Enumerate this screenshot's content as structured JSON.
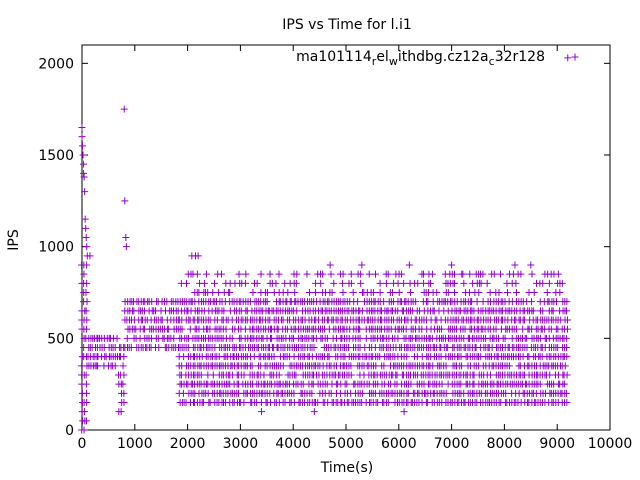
{
  "chart_data": {
    "type": "scatter",
    "title": "IPS vs Time for l.i1",
    "xlabel": "Time(s)",
    "ylabel": "IPS",
    "xlim": [
      0,
      10000
    ],
    "ylim": [
      0,
      2100
    ],
    "xticks": [
      0,
      1000,
      2000,
      3000,
      4000,
      5000,
      6000,
      7000,
      8000,
      9000,
      10000
    ],
    "yticks": [
      0,
      500,
      1000,
      1500,
      2000
    ],
    "grid": false,
    "legend_position": "top-right",
    "series": [
      {
        "name_parts": [
          "ma101114",
          "r",
          "el",
          "w",
          "ithdbg.cz12a",
          "c",
          "32r128"
        ],
        "color": "#9400d3",
        "marker": "plus",
        "outliers": [
          [
            0,
            1650
          ],
          [
            0,
            1600
          ],
          [
            10,
            1550
          ],
          [
            20,
            1500
          ],
          [
            30,
            1450
          ],
          [
            30,
            1400
          ],
          [
            40,
            1380
          ],
          [
            50,
            1300
          ],
          [
            60,
            1150
          ],
          [
            70,
            1100
          ],
          [
            80,
            1050
          ],
          [
            90,
            1000
          ],
          [
            100,
            950
          ],
          [
            150,
            950
          ],
          [
            800,
            1750
          ],
          [
            810,
            1250
          ],
          [
            830,
            1050
          ],
          [
            840,
            1000
          ],
          [
            2080,
            950
          ],
          [
            2150,
            950
          ],
          [
            2200,
            950
          ],
          [
            3400,
            100
          ],
          [
            4400,
            100
          ],
          [
            6100,
            100
          ],
          [
            4700,
            900
          ],
          [
            5300,
            900
          ],
          [
            6200,
            900
          ],
          [
            7000,
            900
          ],
          [
            8200,
            900
          ],
          [
            8500,
            900
          ],
          [
            9200,
            2030
          ]
        ],
        "bands": [
          {
            "x": [
              0,
              120
            ],
            "y": [
              0,
              900
            ]
          },
          {
            "x": [
              120,
              300
            ],
            "y": [
              350,
              500
            ]
          },
          {
            "x": [
              300,
              700
            ],
            "y": [
              350,
              500
            ]
          },
          {
            "x": [
              700,
              820
            ],
            "y": [
              100,
              450
            ]
          },
          {
            "x": [
              820,
              1850
            ],
            "y": [
              450,
              700
            ]
          },
          {
            "x": [
              1850,
              9200
            ],
            "y": [
              150,
              850
            ]
          }
        ]
      }
    ]
  }
}
